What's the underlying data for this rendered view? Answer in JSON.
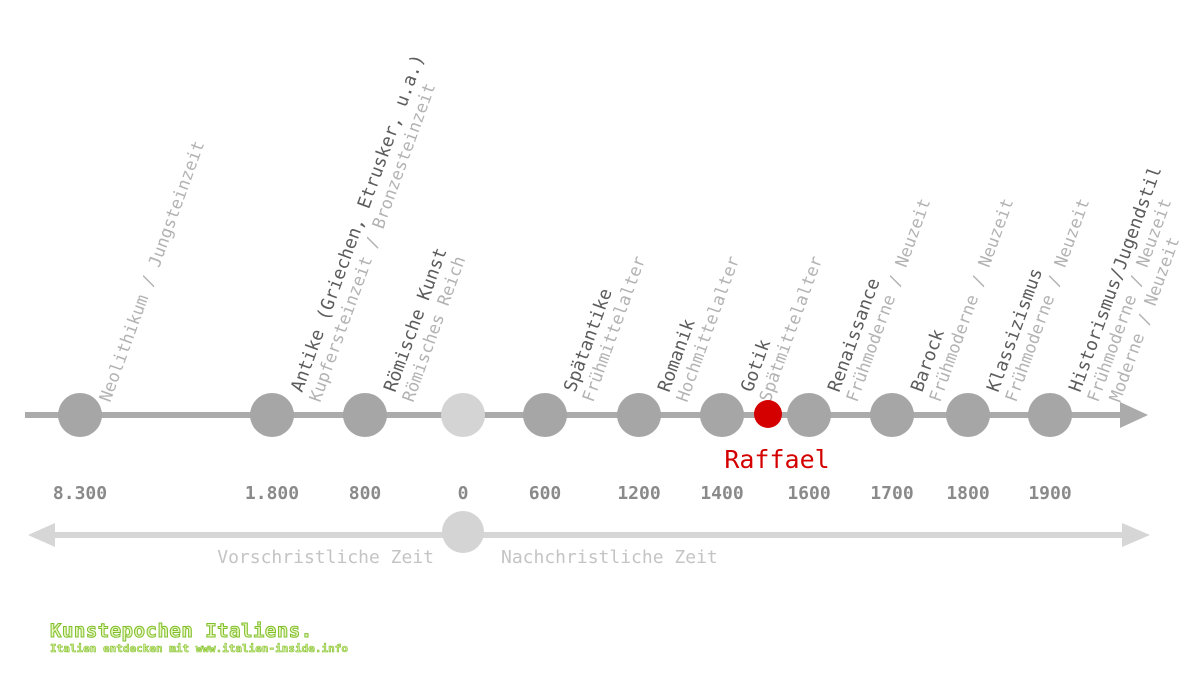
{
  "epochs": [
    {
      "label": "",
      "sub": "Neolithikum / Jungsteinzeit",
      "year": "8.300",
      "type": "epoch"
    },
    {
      "label": "Antike (Griechen, Etrusker, u.a.)",
      "sub": "Kupfersteinzeit / Bronzesteinzeit",
      "year": "1.800",
      "type": "epoch"
    },
    {
      "label": "Römische Kunst",
      "sub": "Römisches Reich",
      "year": "800",
      "type": "epoch"
    },
    {
      "label": "",
      "sub": "",
      "year": "0",
      "type": "zero"
    },
    {
      "label": "Spätantike",
      "sub": "Frühmittelalter",
      "year": "600",
      "type": "epoch"
    },
    {
      "label": "Romanik",
      "sub": "Hochmittelalter",
      "year": "1200",
      "type": "epoch"
    },
    {
      "label": "Gotik",
      "sub": "Spätmittelalter",
      "year": "1400",
      "type": "epoch"
    },
    {
      "label": "",
      "sub": "",
      "year": "",
      "type": "highlight"
    },
    {
      "label": "Renaissance",
      "sub": "Frühmoderne / Neuzeit",
      "year": "1600",
      "type": "epoch"
    },
    {
      "label": "Barock",
      "sub": "Frühmoderne / Neuzeit",
      "year": "1700",
      "type": "epoch"
    },
    {
      "label": "Klassizismus",
      "sub": "Frühmoderne / Neuzeit",
      "year": "1800",
      "type": "epoch"
    },
    {
      "label": "Historismus/Jugendstil",
      "sub": "Frühmoderne / Neuzeit",
      "year": "1900",
      "type": "epoch"
    },
    {
      "label": "",
      "sub": "Moderne / Neuzeit",
      "year": "",
      "type": "end"
    }
  ],
  "highlight": {
    "label": "Raffael",
    "color": "#d40000"
  },
  "era": {
    "before": "Vorschristliche Zeit",
    "after": "Nachchristliche Zeit"
  },
  "colors": {
    "axis": "#ababab",
    "node": "#a6a6a6",
    "zero_node": "#d4d4d4",
    "era_axis": "#d6d6d6",
    "label": "#5c5c5c",
    "sub": "#b3b3b3",
    "year": "#8a8a8a",
    "era_text": "#c4c4c4"
  },
  "footer": {
    "title": "Kunstepochen Italiens.",
    "subtitle": "Italien entdecken mit www.italien-inside.info"
  }
}
